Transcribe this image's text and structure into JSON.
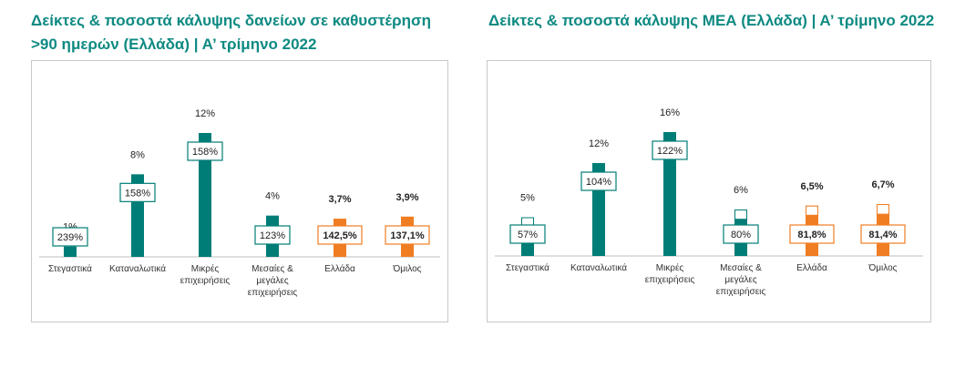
{
  "titles": {
    "left": "Δείκτες & ποσοστά κάλυψης δανείων σε καθυστέρηση >90 ημερών (Ελλάδα) | Α’ τρίμηνο 2022",
    "right": "Δείκτες & ποσοστά κάλυψης ΜΕΑ (Ελλάδα) | Α’ τρίμηνο 2022"
  },
  "colors": {
    "teal": "#007d76",
    "orange": "#f07d22",
    "title": "#0e8a82",
    "axis": "#bfbfbf"
  },
  "chart_data": [
    {
      "type": "bar",
      "title": "Δείκτες & ποσοστά κάλυψης δανείων σε καθυστέρηση >90 ημερών (Ελλάδα) | Α’ τρίμηνο 2022",
      "categories": [
        [
          "Στεγαστικά"
        ],
        [
          "Καταναλωτικά"
        ],
        [
          "Μικρές",
          "επιχειρήσεις"
        ],
        [
          "Μεσαίες &",
          "μεγάλες",
          "επιχειρήσεις"
        ],
        [
          "Ελλάδα"
        ],
        [
          "Όμιλος"
        ]
      ],
      "ratio": [
        1,
        8,
        12,
        4,
        3.7,
        3.9
      ],
      "ratio_labels": [
        "1%",
        "8%",
        "12%",
        "4%",
        "3,7%",
        "3,9%"
      ],
      "coverage_labels": [
        "239%",
        "158%",
        "158%",
        "123%",
        "142,5%",
        "137,1%"
      ],
      "highlight": [
        false,
        false,
        false,
        false,
        true,
        true
      ],
      "ylim": [
        0,
        12
      ]
    },
    {
      "type": "bar",
      "title": "Δείκτες & ποσοστά κάλυψης ΜΕΑ (Ελλάδα) | Α’ τρίμηνο 2022",
      "categories": [
        [
          "Στεγαστικά"
        ],
        [
          "Καταναλωτικά"
        ],
        [
          "Μικρές",
          "επιχειρήσεις"
        ],
        [
          "Μεσαίες &",
          "μεγάλες",
          "επιχειρήσεις"
        ],
        [
          "Ελλάδα"
        ],
        [
          "Όμιλος"
        ]
      ],
      "ratio": [
        5,
        12,
        16,
        6,
        6.5,
        6.7
      ],
      "ratio_labels": [
        "5%",
        "12%",
        "16%",
        "6%",
        "6,5%",
        "6,7%"
      ],
      "coverage_labels": [
        "57%",
        "104%",
        "122%",
        "80%",
        "81,8%",
        "81,4%"
      ],
      "coverage_pct": [
        57,
        104,
        122,
        80,
        81.8,
        81.4
      ],
      "highlight": [
        false,
        false,
        false,
        false,
        true,
        true
      ],
      "ylim": [
        0,
        16
      ]
    }
  ]
}
